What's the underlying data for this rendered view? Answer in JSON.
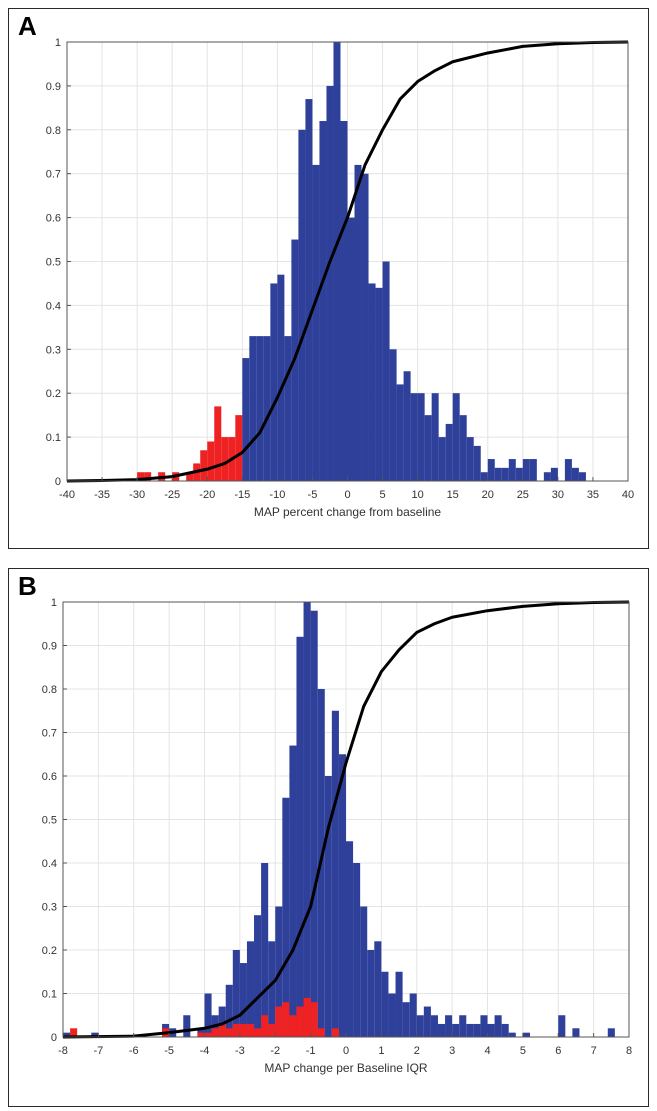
{
  "panels": [
    {
      "letter": "A"
    },
    {
      "letter": "B"
    }
  ],
  "chart_data": [
    {
      "type": "bar",
      "panel": "A",
      "title": "",
      "xlabel": "MAP percent change from baseline",
      "ylabel": "",
      "xlim": [
        -40,
        40
      ],
      "ylim": [
        0,
        1
      ],
      "xticks": [
        -40,
        -35,
        -30,
        -25,
        -20,
        -15,
        -10,
        -5,
        0,
        5,
        10,
        15,
        20,
        25,
        30,
        35,
        40
      ],
      "yticks": [
        0,
        0.1,
        0.2,
        0.3,
        0.4,
        0.5,
        0.6,
        0.7,
        0.8,
        0.9,
        1
      ],
      "ytick_labels": [
        "0",
        "0.1",
        "0.2",
        "0.3",
        "0.4",
        "0.5",
        "0.6",
        "0.7",
        "0.8",
        "0.9",
        "1"
      ],
      "grid": true,
      "bin_width": 1,
      "series": [
        {
          "color": "#ee2222",
          "x": [
            -29.5,
            -28.5,
            -27.5,
            -26.5,
            -25.5,
            -24.5,
            -23.5,
            -22.5,
            -21.5,
            -20.5,
            -19.5,
            -18.5,
            -17.5,
            -16.5,
            -15.5
          ],
          "values": [
            0.02,
            0.02,
            0,
            0.02,
            0,
            0.02,
            0,
            0.02,
            0.04,
            0.07,
            0.09,
            0.17,
            0.1,
            0.1,
            0.15
          ]
        },
        {
          "color": "#2e4099",
          "x": [
            -14.5,
            -13.5,
            -12.5,
            -11.5,
            -10.5,
            -9.5,
            -8.5,
            -7.5,
            -6.5,
            -5.5,
            -4.5,
            -3.5,
            -2.5,
            -1.5,
            -0.5,
            0.5,
            1.5,
            2.5,
            3.5,
            4.5,
            5.5,
            6.5,
            7.5,
            8.5,
            9.5,
            10.5,
            11.5,
            12.5,
            13.5,
            14.5,
            15.5,
            16.5,
            17.5,
            18.5,
            19.5,
            20.5,
            21.5,
            22.5,
            23.5,
            24.5,
            25.5,
            26.5,
            27.5,
            28.5,
            29.5,
            30.5,
            31.5,
            32.5,
            33.5
          ],
          "values": [
            0.28,
            0.33,
            0.33,
            0.33,
            0.45,
            0.47,
            0.33,
            0.55,
            0.8,
            0.87,
            0.72,
            0.82,
            0.9,
            1.0,
            0.82,
            0.6,
            0.72,
            0.7,
            0.45,
            0.44,
            0.5,
            0.3,
            0.22,
            0.25,
            0.2,
            0.2,
            0.15,
            0.2,
            0.1,
            0.13,
            0.2,
            0.15,
            0.1,
            0.08,
            0.02,
            0.05,
            0.03,
            0.03,
            0.05,
            0.03,
            0.05,
            0.05,
            0,
            0.02,
            0.03,
            0,
            0.05,
            0.03,
            0.02
          ]
        },
        {
          "type": "line",
          "color": "#000000",
          "x": [
            -40,
            -35,
            -30,
            -25,
            -20,
            -17.5,
            -15,
            -12.5,
            -10,
            -7.5,
            -5,
            -2.5,
            0,
            2.5,
            5,
            7.5,
            10,
            12.5,
            15,
            20,
            25,
            30,
            35,
            40
          ],
          "values": [
            0.0,
            0.001,
            0.003,
            0.01,
            0.027,
            0.04,
            0.065,
            0.11,
            0.19,
            0.28,
            0.39,
            0.5,
            0.6,
            0.72,
            0.8,
            0.87,
            0.91,
            0.935,
            0.955,
            0.975,
            0.99,
            0.996,
            0.999,
            1.0
          ]
        }
      ]
    },
    {
      "type": "bar",
      "panel": "B",
      "title": "",
      "xlabel": "MAP change per Baseline IQR",
      "ylabel": "",
      "xlim": [
        -8,
        8
      ],
      "ylim": [
        0,
        1
      ],
      "xticks": [
        -8,
        -7,
        -6,
        -5,
        -4,
        -3,
        -2,
        -1,
        0,
        1,
        2,
        3,
        4,
        5,
        6,
        7,
        8
      ],
      "yticks": [
        0,
        0.1,
        0.2,
        0.3,
        0.4,
        0.5,
        0.6,
        0.7,
        0.8,
        0.9,
        1
      ],
      "ytick_labels": [
        "0",
        "0.1",
        "0.2",
        "0.3",
        "0.4",
        "0.5",
        "0.6",
        "0.7",
        "0.8",
        "0.9",
        "1"
      ],
      "grid": true,
      "bin_width": 0.2,
      "series": [
        {
          "color": "#2e4099",
          "x": [
            -7.9,
            -7.1,
            -5.1,
            -4.9,
            -4.5,
            -4.1,
            -3.9,
            -3.7,
            -3.5,
            -3.3,
            -3.1,
            -2.9,
            -2.7,
            -2.5,
            -2.3,
            -2.1,
            -1.9,
            -1.7,
            -1.5,
            -1.3,
            -1.1,
            -0.9,
            -0.7,
            -0.5,
            -0.3,
            -0.1,
            0.1,
            0.3,
            0.5,
            0.7,
            0.9,
            1.1,
            1.3,
            1.5,
            1.7,
            1.9,
            2.1,
            2.3,
            2.5,
            2.7,
            2.9,
            3.1,
            3.3,
            3.5,
            3.7,
            3.9,
            4.1,
            4.3,
            4.5,
            4.7,
            5.1,
            6.1,
            6.5,
            7.5
          ],
          "values": [
            0.01,
            0.01,
            0.03,
            0.02,
            0.05,
            0.02,
            0.1,
            0.05,
            0.07,
            0.12,
            0.2,
            0.17,
            0.22,
            0.28,
            0.4,
            0.22,
            0.3,
            0.55,
            0.67,
            0.92,
            1.0,
            0.98,
            0.8,
            0.6,
            0.75,
            0.65,
            0.45,
            0.4,
            0.3,
            0.2,
            0.22,
            0.15,
            0.1,
            0.15,
            0.08,
            0.1,
            0.05,
            0.07,
            0.05,
            0.03,
            0.05,
            0.03,
            0.05,
            0.03,
            0.03,
            0.05,
            0.03,
            0.05,
            0.03,
            0.01,
            0.01,
            0.05,
            0.02,
            0.02
          ]
        },
        {
          "color": "#ee2222",
          "x": [
            -7.7,
            -5.1,
            -4.1,
            -3.9,
            -3.7,
            -3.5,
            -3.3,
            -3.1,
            -2.9,
            -2.7,
            -2.5,
            -2.3,
            -2.1,
            -1.9,
            -1.7,
            -1.5,
            -1.3,
            -1.1,
            -0.9,
            -0.7,
            -0.5,
            -0.3
          ],
          "values": [
            0.02,
            0.02,
            0.01,
            0.01,
            0.02,
            0.03,
            0.02,
            0.03,
            0.03,
            0.03,
            0.02,
            0.05,
            0.03,
            0.07,
            0.08,
            0.05,
            0.07,
            0.09,
            0.08,
            0.02,
            0,
            0.02
          ]
        },
        {
          "type": "line",
          "color": "#000000",
          "x": [
            -8,
            -6,
            -5,
            -4,
            -3.5,
            -3,
            -2.5,
            -2,
            -1.5,
            -1,
            -0.5,
            0,
            0.5,
            1,
            1.5,
            2,
            2.5,
            3,
            4,
            5,
            6,
            7,
            8
          ],
          "values": [
            0.0,
            0.002,
            0.01,
            0.02,
            0.03,
            0.05,
            0.09,
            0.13,
            0.2,
            0.3,
            0.48,
            0.63,
            0.76,
            0.84,
            0.89,
            0.93,
            0.95,
            0.965,
            0.98,
            0.99,
            0.996,
            0.999,
            1.0
          ]
        }
      ]
    }
  ]
}
